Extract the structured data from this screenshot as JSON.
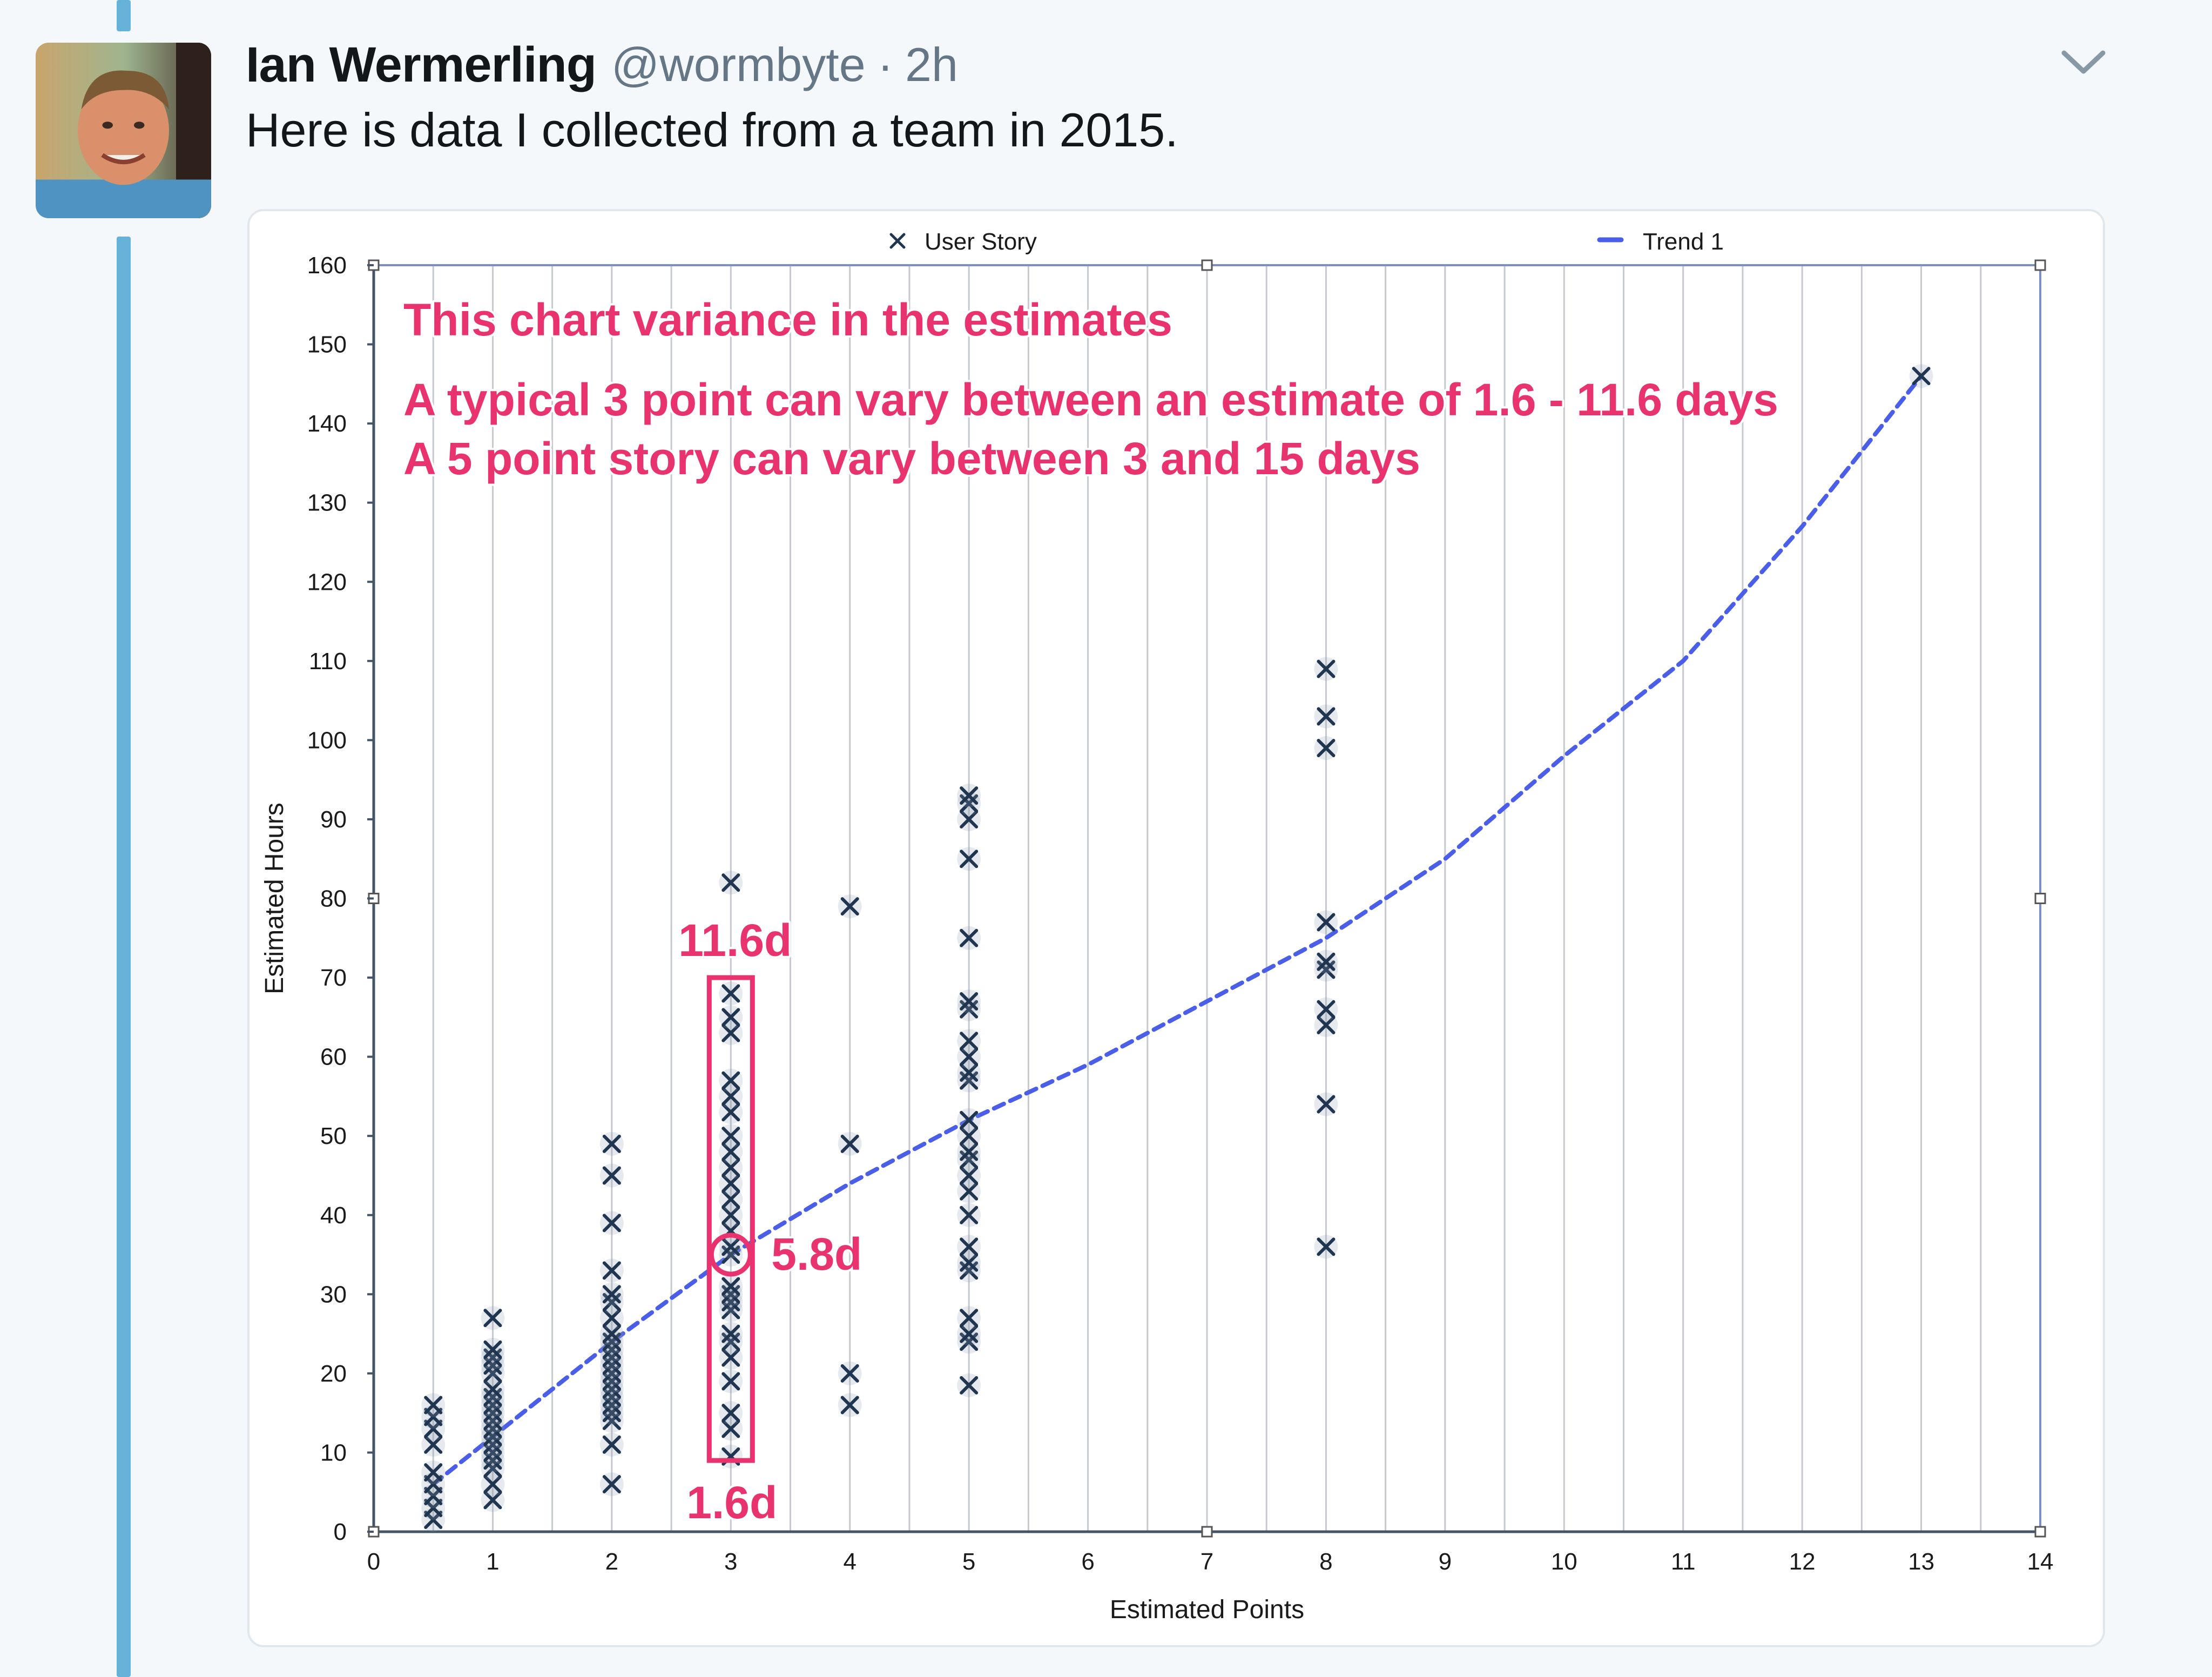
{
  "tweet": {
    "display_name": "Ian Wermerling",
    "handle": "@wormbyte",
    "separator": "·",
    "timestamp": "2h",
    "text": "Here is data I collected from a team in 2015.",
    "menu_icon": "chevron-down-icon"
  },
  "colors": {
    "thread_line": "#67b2d8",
    "annotation": "#e8336e",
    "trend": "#4a5ee8",
    "marker": "#1f3550"
  },
  "chart_data": {
    "type": "scatter",
    "title": "",
    "xlabel": "Estimated Points",
    "ylabel": "Estimated Hours",
    "xlim": [
      0,
      14
    ],
    "ylim": [
      0,
      160
    ],
    "xticks": [
      "0",
      "1",
      "2",
      "3",
      "4",
      "5",
      "6",
      "7",
      "8",
      "9",
      "10",
      "11",
      "12",
      "13",
      "14"
    ],
    "yticks": [
      "0",
      "10",
      "20",
      "30",
      "40",
      "50",
      "60",
      "70",
      "80",
      "90",
      "100",
      "110",
      "120",
      "130",
      "140",
      "150",
      "160"
    ],
    "grid": "vertical",
    "legend": [
      "User Story",
      "Trend 1"
    ],
    "legend_position": "top",
    "series": [
      {
        "name": "User Story",
        "points": [
          [
            0.5,
            1.5
          ],
          [
            0.5,
            3
          ],
          [
            0.5,
            4.5
          ],
          [
            0.5,
            6
          ],
          [
            0.5,
            7.5
          ],
          [
            0.5,
            11
          ],
          [
            0.5,
            13
          ],
          [
            0.5,
            14.5
          ],
          [
            0.5,
            16
          ],
          [
            1,
            4
          ],
          [
            1,
            6
          ],
          [
            1,
            8
          ],
          [
            1,
            9
          ],
          [
            1,
            10
          ],
          [
            1,
            11
          ],
          [
            1,
            12
          ],
          [
            1,
            13
          ],
          [
            1,
            14
          ],
          [
            1,
            15
          ],
          [
            1,
            16
          ],
          [
            1,
            17
          ],
          [
            1,
            18
          ],
          [
            1,
            20
          ],
          [
            1,
            21
          ],
          [
            1,
            22
          ],
          [
            1,
            23
          ],
          [
            1,
            27
          ],
          [
            2,
            6
          ],
          [
            2,
            11
          ],
          [
            2,
            14
          ],
          [
            2,
            15
          ],
          [
            2,
            16
          ],
          [
            2,
            17
          ],
          [
            2,
            18
          ],
          [
            2,
            19
          ],
          [
            2,
            20
          ],
          [
            2,
            21
          ],
          [
            2,
            22
          ],
          [
            2,
            23
          ],
          [
            2,
            24
          ],
          [
            2,
            25
          ],
          [
            2,
            27
          ],
          [
            2,
            29
          ],
          [
            2,
            30
          ],
          [
            2,
            33
          ],
          [
            2,
            39
          ],
          [
            2,
            45
          ],
          [
            2,
            49
          ],
          [
            3,
            9.5
          ],
          [
            3,
            13
          ],
          [
            3,
            15
          ],
          [
            3,
            19
          ],
          [
            3,
            22
          ],
          [
            3,
            24
          ],
          [
            3,
            25
          ],
          [
            3,
            28
          ],
          [
            3,
            29
          ],
          [
            3,
            30
          ],
          [
            3,
            31
          ],
          [
            3,
            35
          ],
          [
            3,
            36
          ],
          [
            3,
            38
          ],
          [
            3,
            40
          ],
          [
            3,
            42
          ],
          [
            3,
            44
          ],
          [
            3,
            46
          ],
          [
            3,
            48
          ],
          [
            3,
            50
          ],
          [
            3,
            53
          ],
          [
            3,
            55
          ],
          [
            3,
            57
          ],
          [
            3,
            63
          ],
          [
            3,
            65
          ],
          [
            3,
            68
          ],
          [
            3,
            82
          ],
          [
            4,
            16
          ],
          [
            4,
            20
          ],
          [
            4,
            49
          ],
          [
            4,
            79
          ],
          [
            5,
            18.5
          ],
          [
            5,
            24
          ],
          [
            5,
            25
          ],
          [
            5,
            27
          ],
          [
            5,
            33
          ],
          [
            5,
            34
          ],
          [
            5,
            36
          ],
          [
            5,
            40
          ],
          [
            5,
            43
          ],
          [
            5,
            45
          ],
          [
            5,
            47
          ],
          [
            5,
            48
          ],
          [
            5,
            50
          ],
          [
            5,
            52
          ],
          [
            5,
            57
          ],
          [
            5,
            58
          ],
          [
            5,
            60
          ],
          [
            5,
            62
          ],
          [
            5,
            66
          ],
          [
            5,
            67
          ],
          [
            5,
            75
          ],
          [
            5,
            85
          ],
          [
            5,
            90
          ],
          [
            5,
            92
          ],
          [
            5,
            93
          ],
          [
            8,
            36
          ],
          [
            8,
            54
          ],
          [
            8,
            64
          ],
          [
            8,
            66
          ],
          [
            8,
            71
          ],
          [
            8,
            72
          ],
          [
            8,
            77
          ],
          [
            8,
            99
          ],
          [
            8,
            103
          ],
          [
            8,
            109
          ],
          [
            13,
            146
          ]
        ]
      },
      {
        "name": "Trend 1",
        "points": [
          [
            0.5,
            6
          ],
          [
            1,
            12
          ],
          [
            2,
            24
          ],
          [
            3,
            35
          ],
          [
            4,
            44
          ],
          [
            5,
            52
          ],
          [
            6,
            59
          ],
          [
            7,
            67
          ],
          [
            8,
            75
          ],
          [
            9,
            85
          ],
          [
            10,
            98
          ],
          [
            11,
            110
          ],
          [
            12,
            127
          ],
          [
            13,
            146
          ]
        ]
      }
    ],
    "annotations": {
      "title": "This chart variance in the estimates",
      "line1": "A typical 3 point can vary between an estimate of 1.6 - 11.6 days",
      "line2": "A 5 point story can vary between 3 and 15 days",
      "high_label": "11.6d",
      "mid_label": "5.8d",
      "low_label": "1.6d",
      "range_box": {
        "x": 3,
        "y_low": 9,
        "y_high": 70
      },
      "mid_circle": {
        "x": 3,
        "y": 35
      }
    }
  }
}
